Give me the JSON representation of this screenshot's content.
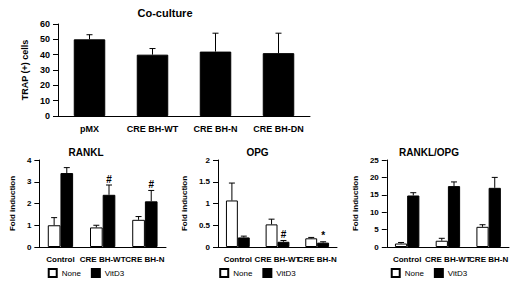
{
  "chart_data": [
    {
      "type": "bar",
      "title": "Co-culture",
      "y_label": "TRAP (+) cells",
      "categories": [
        "pMX",
        "CRE BH-WT",
        "CRE BH-N",
        "CRE BH-DN"
      ],
      "values": [
        50,
        40,
        42,
        41
      ],
      "errors": [
        3,
        4,
        12,
        13
      ],
      "color": "#000000",
      "ylim": [
        0,
        60
      ],
      "yticks": [
        0,
        10,
        20,
        30,
        40,
        50,
        60
      ],
      "grid": false
    },
    {
      "type": "bar",
      "title": "RANKL",
      "y_label": "Fold induction",
      "categories": [
        "Control",
        "CRE BH-WT",
        "CRE BH-N"
      ],
      "series": [
        {
          "name": "None",
          "color": "#ffffff",
          "values": [
            1.0,
            0.9,
            1.25
          ],
          "errors": [
            0.35,
            0.1,
            0.15
          ]
        },
        {
          "name": "VitD3",
          "color": "#000000",
          "values": [
            3.4,
            2.4,
            2.1
          ],
          "errors": [
            0.25,
            0.45,
            0.5
          ]
        }
      ],
      "annotations": [
        {
          "category": "CRE BH-WT",
          "series": "VitD3",
          "text": "#"
        },
        {
          "category": "CRE BH-N",
          "series": "VitD3",
          "text": "#"
        }
      ],
      "ylim": [
        0,
        4
      ],
      "yticks": [
        0,
        1,
        2,
        3,
        4
      ],
      "grid": false,
      "legend": "bottom"
    },
    {
      "type": "bar",
      "title": "OPG",
      "y_label": "Fold induction",
      "categories": [
        "Control",
        "CRE BH-WT",
        "CRE BH-N"
      ],
      "series": [
        {
          "name": "None",
          "color": "#ffffff",
          "values": [
            1.07,
            0.52,
            0.2
          ],
          "errors": [
            0.4,
            0.12,
            0.02
          ]
        },
        {
          "name": "VitD3",
          "color": "#000000",
          "values": [
            0.22,
            0.12,
            0.1
          ],
          "errors": [
            0.03,
            0.03,
            0.02
          ]
        }
      ],
      "annotations": [
        {
          "category": "CRE BH-WT",
          "series": "VitD3",
          "text": "#"
        },
        {
          "category": "CRE BH-N",
          "series": "VitD3",
          "text": "*"
        }
      ],
      "ylim": [
        0,
        2
      ],
      "yticks": [
        0,
        0.5,
        1,
        1.5,
        2
      ],
      "grid": false,
      "legend": "bottom"
    },
    {
      "type": "bar",
      "title": "RANKL/OPG",
      "y_label": "Fold induction",
      "categories": [
        "Control",
        "CRE BH-WT",
        "CRE BH-N"
      ],
      "series": [
        {
          "name": "None",
          "color": "#ffffff",
          "values": [
            1.0,
            1.8,
            5.8
          ],
          "errors": [
            0.3,
            0.7,
            0.6
          ]
        },
        {
          "name": "VitD3",
          "color": "#000000",
          "values": [
            14.8,
            17.5,
            17.0
          ],
          "errors": [
            0.8,
            1.2,
            3.0
          ]
        }
      ],
      "ylim": [
        0,
        25
      ],
      "yticks": [
        0,
        5,
        10,
        15,
        20,
        25
      ],
      "grid": false,
      "legend": "bottom"
    }
  ]
}
